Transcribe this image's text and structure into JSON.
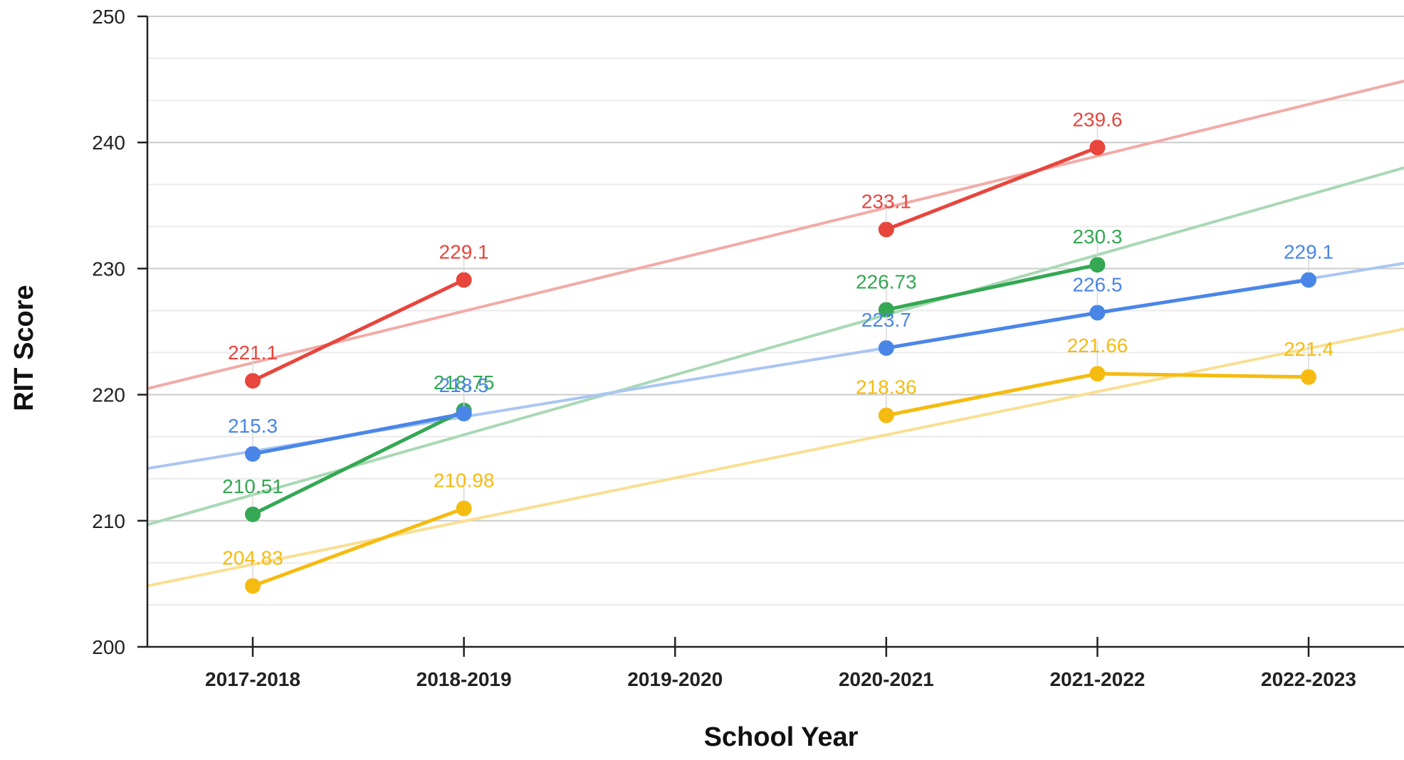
{
  "chart_data": {
    "type": "line",
    "title": "",
    "xlabel": "School Year",
    "ylabel": "RIT Score",
    "categories": [
      "2017-2018",
      "2018-2019",
      "2019-2020",
      "2020-2021",
      "2021-2022",
      "2022-2023"
    ],
    "ylim": [
      200,
      250
    ],
    "y_ticks": [
      200,
      210,
      220,
      230,
      240,
      250
    ],
    "grid": true,
    "legend": "none",
    "series": [
      {
        "color": "#e8453c",
        "trend_color": "#f2aba6",
        "values": [
          221.1,
          229.1,
          null,
          233.1,
          239.6,
          null
        ],
        "labels": [
          "221.1",
          "229.1",
          null,
          "233.1",
          "239.6",
          null
        ],
        "trendline": true
      },
      {
        "color": "#34a853",
        "trend_color": "#a9d8b5",
        "values": [
          210.51,
          218.75,
          null,
          226.73,
          230.3,
          null
        ],
        "labels": [
          "210.51",
          "218.75",
          null,
          "226.73",
          "230.3",
          null
        ],
        "trendline": true
      },
      {
        "color": "#4a86e8",
        "trend_color": "#aac6f3",
        "values": [
          215.3,
          218.5,
          null,
          223.7,
          226.5,
          229.1
        ],
        "labels": [
          "215.3",
          "218.5",
          null,
          "223.7",
          "226.5",
          "229.1"
        ],
        "trendline": true
      },
      {
        "color": "#f6bb10",
        "trend_color": "#f9df93",
        "values": [
          204.83,
          210.98,
          null,
          218.36,
          221.66,
          221.4
        ],
        "labels": [
          "204.83",
          "210.98",
          null,
          "218.36",
          "221.66",
          "221.4"
        ],
        "trendline": true
      }
    ]
  }
}
